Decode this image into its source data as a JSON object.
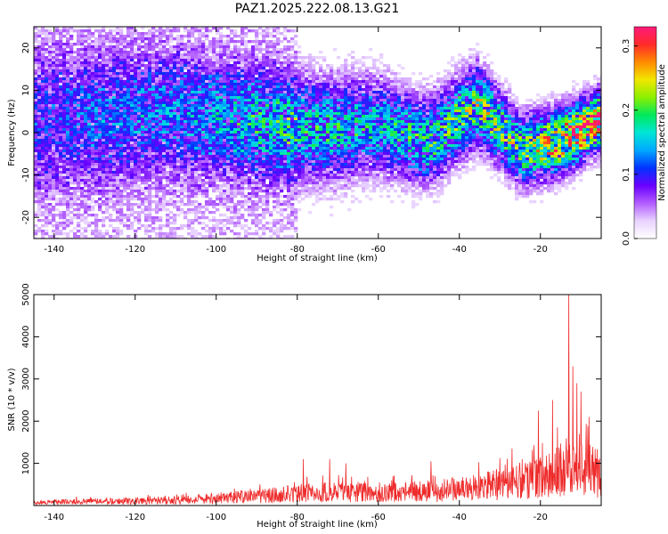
{
  "title": "PAZ1.2025.222.08.13.G21",
  "chart_data": [
    {
      "type": "heatmap",
      "xlabel": "Height of straight line (km)",
      "ylabel": "Frequency (Hz)",
      "xlim": [
        -145,
        -5
      ],
      "ylim": [
        -25,
        25
      ],
      "x_ticks": [
        -140,
        -120,
        -100,
        -80,
        -60,
        -40,
        -20
      ],
      "y_ticks": [
        -20,
        -10,
        0,
        10,
        20
      ],
      "colorbar": {
        "label": "Normalized spectral amplitude",
        "range": [
          0.0,
          0.33
        ],
        "ticks": [
          0.0,
          0.1,
          0.2,
          0.3
        ],
        "tick_labels": [
          "0.0",
          "0.1",
          "0.2",
          "0.3"
        ],
        "colors": [
          "#ffffff",
          "#e9d3ff",
          "#b25dff",
          "#6a00ff",
          "#0033ff",
          "#00a9ff",
          "#00e6d6",
          "#00e85b",
          "#8cf000",
          "#f2e600",
          "#ff8a00",
          "#ff2a2a",
          "#ff1a7a"
        ]
      },
      "band_ridge": [
        {
          "x": -145,
          "freq": 3,
          "amp": 0.08
        },
        {
          "x": -130,
          "freq": 4,
          "amp": 0.1
        },
        {
          "x": -110,
          "freq": 5,
          "amp": 0.11
        },
        {
          "x": -95,
          "freq": 3,
          "amp": 0.14
        },
        {
          "x": -85,
          "freq": 2,
          "amp": 0.16
        },
        {
          "x": -75,
          "freq": 1,
          "amp": 0.17
        },
        {
          "x": -60,
          "freq": 2,
          "amp": 0.16
        },
        {
          "x": -48,
          "freq": -2,
          "amp": 0.18
        },
        {
          "x": -36,
          "freq": 7,
          "amp": 0.22
        },
        {
          "x": -25,
          "freq": -4,
          "amp": 0.2
        },
        {
          "x": -15,
          "freq": -1.5,
          "amp": 0.3
        },
        {
          "x": -6,
          "freq": 3,
          "amp": 0.32
        }
      ],
      "grid": false
    },
    {
      "type": "line",
      "xlabel": "Height of straight line (km)",
      "ylabel": "SNR (10 * v/v)",
      "xlim": [
        -145,
        -5
      ],
      "ylim": [
        0,
        5000
      ],
      "x_ticks": [
        -140,
        -120,
        -100,
        -80,
        -60,
        -40,
        -20
      ],
      "y_ticks": [
        1000,
        2000,
        3000,
        4000,
        5000
      ],
      "color": "#ee2a2a",
      "envelope": [
        {
          "x": -145,
          "y": 120
        },
        {
          "x": -130,
          "y": 150
        },
        {
          "x": -110,
          "y": 200
        },
        {
          "x": -100,
          "y": 280
        },
        {
          "x": -90,
          "y": 350
        },
        {
          "x": -80,
          "y": 450
        },
        {
          "x": -70,
          "y": 520
        },
        {
          "x": -60,
          "y": 500
        },
        {
          "x": -50,
          "y": 520
        },
        {
          "x": -40,
          "y": 640
        },
        {
          "x": -30,
          "y": 800
        },
        {
          "x": -20,
          "y": 1050
        },
        {
          "x": -15,
          "y": 1300
        },
        {
          "x": -10,
          "y": 1400
        },
        {
          "x": -5,
          "y": 1200
        }
      ],
      "peaks": [
        {
          "x": -78.5,
          "y": 1100
        },
        {
          "x": -72,
          "y": 1100
        },
        {
          "x": -68,
          "y": 1000
        },
        {
          "x": -47,
          "y": 1050
        },
        {
          "x": -27,
          "y": 1350
        },
        {
          "x": -20.5,
          "y": 2250
        },
        {
          "x": -17,
          "y": 2500
        },
        {
          "x": -13,
          "y": 5000
        },
        {
          "x": -12,
          "y": 3300
        },
        {
          "x": -11,
          "y": 2900
        },
        {
          "x": -10,
          "y": 2700
        },
        {
          "x": -8,
          "y": 2100
        }
      ],
      "grid": false
    }
  ]
}
